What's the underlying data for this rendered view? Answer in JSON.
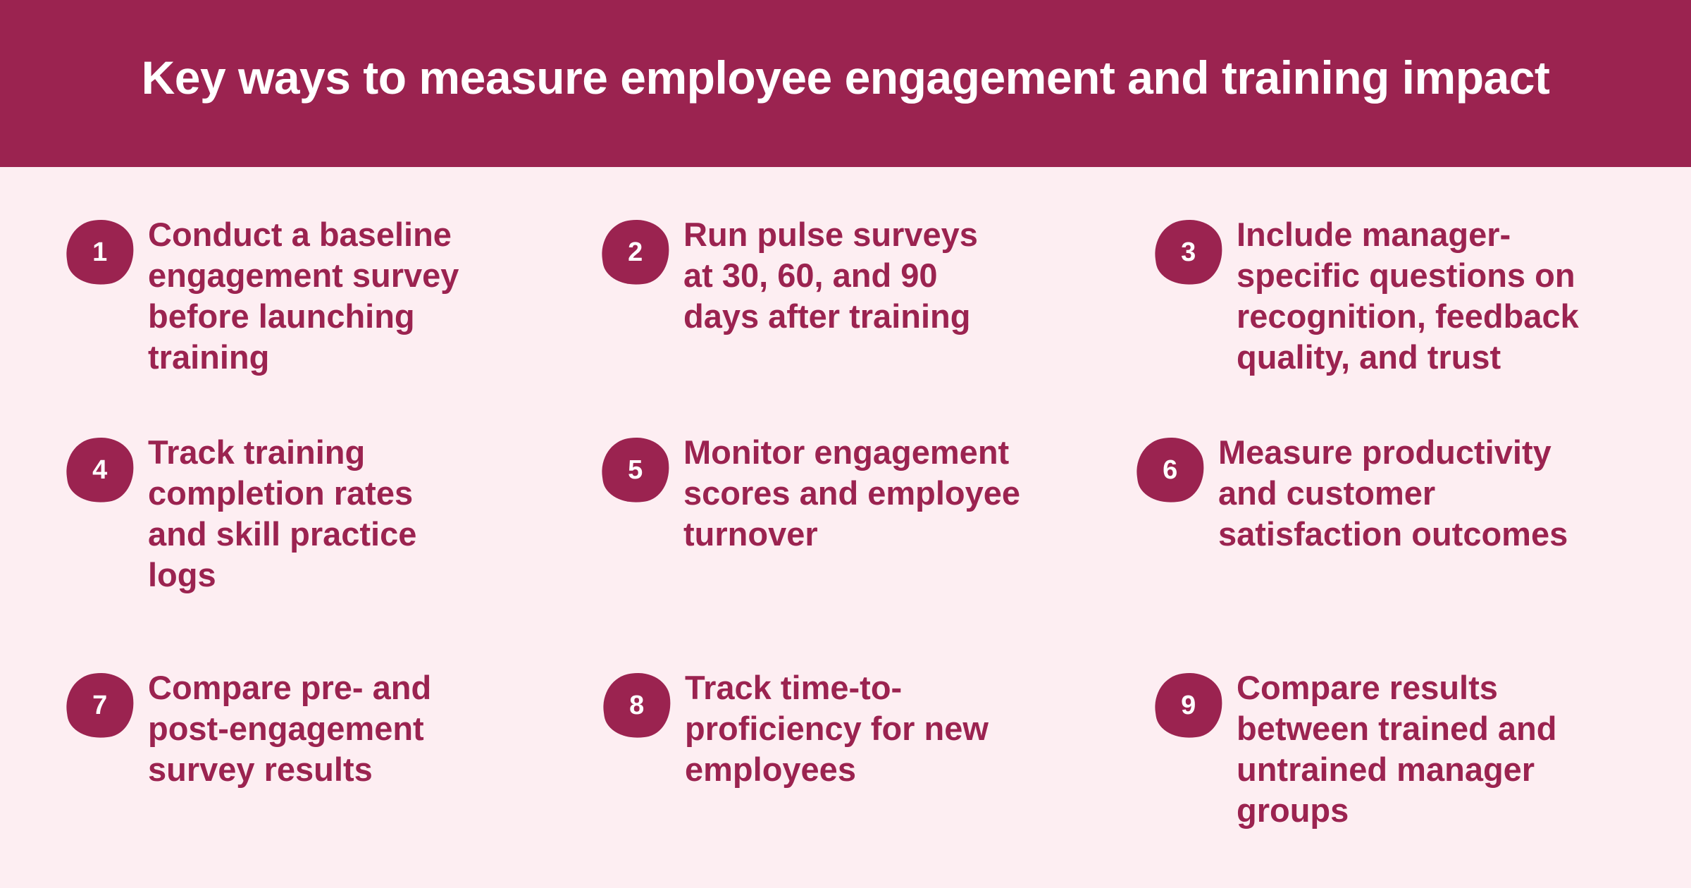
{
  "header": {
    "title": "Key ways to measure employee engagement and training impact"
  },
  "items": [
    {
      "number": "1",
      "text": "Conduct a baseline engagement survey before launching training"
    },
    {
      "number": "2",
      "text": "Run pulse surveys at 30, 60, and 90 days after training"
    },
    {
      "number": "3",
      "text": "Include manager-specific questions on recognition, feedback quality, and trust"
    },
    {
      "number": "4",
      "text": "Track training completion rates and skill practice logs"
    },
    {
      "number": "5",
      "text": "Monitor engagement scores and employee turnover"
    },
    {
      "number": "6",
      "text": "Measure productivity and customer satisfaction outcomes"
    },
    {
      "number": "7",
      "text": "Compare pre- and post-engagement survey results"
    },
    {
      "number": "8",
      "text": "Track time-to-proficiency for new employees"
    },
    {
      "number": "9",
      "text": "Compare results between trained and untrained manager groups"
    }
  ]
}
